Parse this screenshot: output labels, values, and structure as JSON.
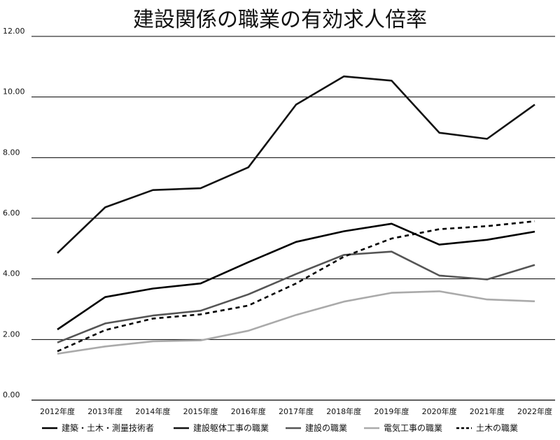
{
  "chart_data": {
    "type": "line",
    "title": "建設関係の職業の有効求人倍率",
    "xlabel": "",
    "ylabel": "",
    "categories": [
      "2012年度",
      "2013年度",
      "2014年度",
      "2015年度",
      "2016年度",
      "2017年度",
      "2018年度",
      "2019年度",
      "2020年度",
      "2021年度",
      "2022年度"
    ],
    "ylim": [
      0,
      12
    ],
    "yticks": [
      "0.00",
      "2.00",
      "4.00",
      "6.00",
      "8.00",
      "10.00",
      "12.00"
    ],
    "grid": "horizontal",
    "legend_position": "bottom",
    "series": [
      {
        "name": "建築・土木・測量技術者",
        "color": "#000000",
        "dash": "solid",
        "values": [
          2.33,
          3.4,
          3.68,
          3.85,
          4.55,
          5.22,
          5.57,
          5.82,
          5.13,
          5.29,
          5.56
        ]
      },
      {
        "name": "建設躯体工事の職業",
        "color": "#111111",
        "dash": "solid",
        "values": [
          4.85,
          6.36,
          6.93,
          6.99,
          7.68,
          9.75,
          10.68,
          10.54,
          8.82,
          8.62,
          9.75
        ]
      },
      {
        "name": "建設の職業",
        "color": "#555555",
        "dash": "solid",
        "values": [
          1.9,
          2.53,
          2.79,
          2.95,
          3.49,
          4.16,
          4.79,
          4.9,
          4.11,
          3.98,
          4.46
        ]
      },
      {
        "name": "電気工事の職業",
        "color": "#aaaaaa",
        "dash": "solid",
        "values": [
          1.53,
          1.77,
          1.94,
          1.97,
          2.29,
          2.81,
          3.25,
          3.54,
          3.59,
          3.32,
          3.26
        ]
      },
      {
        "name": "土木の職業",
        "color": "#000000",
        "dash": "dashed",
        "values": [
          1.61,
          2.31,
          2.69,
          2.83,
          3.12,
          3.85,
          4.73,
          5.33,
          5.64,
          5.74,
          5.9
        ]
      }
    ]
  }
}
